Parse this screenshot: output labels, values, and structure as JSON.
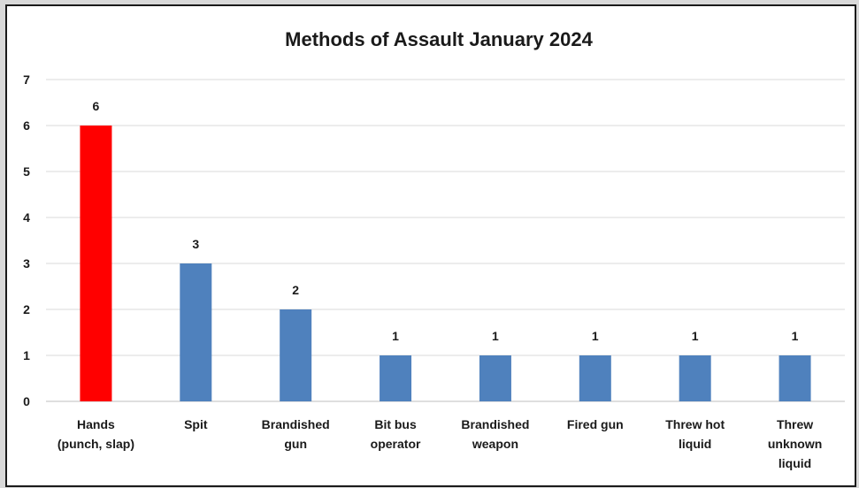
{
  "chart_data": {
    "type": "bar",
    "title": "Methods of Assault January 2024",
    "xlabel": "",
    "ylabel": "",
    "ylim": [
      0,
      7
    ],
    "yticks": [
      "0",
      "1",
      "2",
      "3",
      "4",
      "5",
      "6",
      "7"
    ],
    "grid": true,
    "legend": "none",
    "categories": [
      [
        "Hands",
        "(punch, slap)"
      ],
      [
        "Spit"
      ],
      [
        "Brandished",
        "gun"
      ],
      [
        "Bit bus",
        "operator"
      ],
      [
        "Brandished",
        "weapon"
      ],
      [
        "Fired gun"
      ],
      [
        "Threw hot",
        "liquid"
      ],
      [
        "Threw",
        "unknown",
        "liquid"
      ]
    ],
    "values": [
      6,
      3,
      2,
      1,
      1,
      1,
      1,
      1
    ],
    "data_labels": [
      "6",
      "3",
      "2",
      "1",
      "1",
      "1",
      "1",
      "1"
    ],
    "colors": [
      "#ff0000",
      "#4f81bd",
      "#4f81bd",
      "#4f81bd",
      "#4f81bd",
      "#4f81bd",
      "#4f81bd",
      "#4f81bd"
    ]
  }
}
